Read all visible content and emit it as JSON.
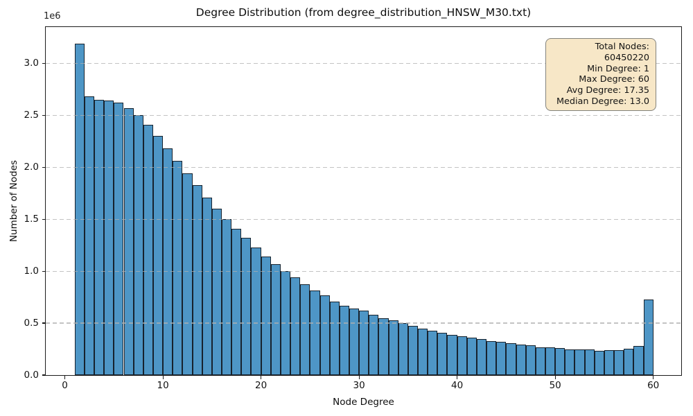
{
  "figure": {
    "title": "Degree Distribution (from degree_distribution_HNSW_M30.txt)",
    "xlabel": "Node Degree",
    "ylabel": "Number of Nodes",
    "offset_label": "1e6"
  },
  "stats_box": {
    "lines": [
      "Total Nodes: 60450220",
      "Min Degree: 1",
      "Max Degree: 60",
      "Avg Degree: 17.35",
      "Median Degree: 13.0"
    ]
  },
  "chart_data": {
    "type": "bar",
    "title": "Degree Distribution (from degree_distribution_HNSW_M30.txt)",
    "xlabel": "Node Degree",
    "ylabel": "Number of Nodes",
    "y_offset_factor": "1e6",
    "x": [
      1,
      2,
      3,
      4,
      5,
      6,
      7,
      8,
      9,
      10,
      11,
      12,
      13,
      14,
      15,
      16,
      17,
      18,
      19,
      20,
      21,
      22,
      23,
      24,
      25,
      26,
      27,
      28,
      29,
      30,
      31,
      32,
      33,
      34,
      35,
      36,
      37,
      38,
      39,
      40,
      41,
      42,
      43,
      44,
      45,
      46,
      47,
      48,
      49,
      50,
      51,
      52,
      53,
      54,
      55,
      56,
      57,
      58,
      59
    ],
    "values": [
      3190000,
      2680000,
      2650000,
      2640000,
      2620000,
      2570000,
      2500000,
      2410000,
      2300000,
      2180000,
      2060000,
      1940000,
      1830000,
      1710000,
      1600000,
      1500000,
      1410000,
      1320000,
      1230000,
      1140000,
      1070000,
      1000000,
      940000,
      875000,
      815000,
      765000,
      710000,
      665000,
      640000,
      620000,
      580000,
      550000,
      530000,
      500000,
      475000,
      450000,
      430000,
      410000,
      390000,
      375000,
      360000,
      345000,
      330000,
      320000,
      305000,
      295000,
      290000,
      270000,
      265000,
      260000,
      250000,
      247000,
      245000,
      235000,
      242000,
      242000,
      255000,
      280000,
      730000
    ],
    "bar_width_units": 1,
    "xlim": [
      -1.95,
      62.85
    ],
    "ylim": [
      0,
      3350000
    ],
    "x_ticks": [
      0,
      10,
      20,
      30,
      40,
      50,
      60
    ],
    "x_tick_labels": [
      "0",
      "10",
      "20",
      "30",
      "40",
      "50",
      "60"
    ],
    "y_ticks": [
      0,
      500000,
      1000000,
      1500000,
      2000000,
      2500000,
      3000000
    ],
    "y_tick_labels": [
      "0.0",
      "0.5",
      "1.0",
      "1.5",
      "2.0",
      "2.5",
      "3.0"
    ],
    "grid": true,
    "grid_style": "dashed",
    "legend_position": "none",
    "annotation_box_position": "upper-right",
    "bar_color": "#4e96c6",
    "bar_edge_color": "#12181f",
    "grid_color": "#b0b0b0",
    "stats_box_fill": "#f7e7c7",
    "stats_box_border": "#82827c"
  }
}
